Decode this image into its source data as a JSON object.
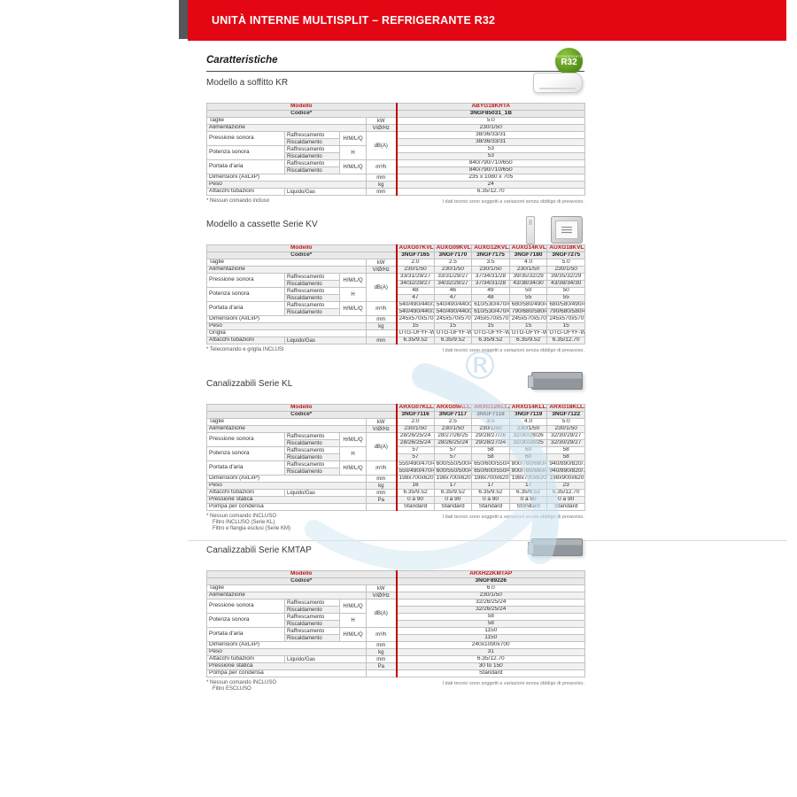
{
  "banner": {
    "title": "UNITÀ INTERNE MULTISPLIT – REFRIGERANTE R32"
  },
  "heading": "Caratteristiche",
  "badge": {
    "top_label": "REFRIGERANTE",
    "label": "R32",
    "color": "#5a9e1e"
  },
  "footnote_right": "I dati tecnici sono soggetti a variazioni senza obbligo di preavviso.",
  "labels": {
    "modello": "Modello",
    "codice": "Codice*",
    "taglie": "Taglie",
    "alimentazione": "Alimentazione",
    "pressione_sonora": "Pressione sonora",
    "potenza_sonora": "Potenza sonora",
    "portata_aria": "Portata d'aria",
    "raffrescamento": "Raffrescamento",
    "riscaldamento": "Riscaldamento",
    "hmlq": "H/M/L/Q",
    "h": "H",
    "dimensioni": "Dimensioni (AxLxP)",
    "peso": "Peso",
    "griglia": "Griglia",
    "attacchi": "Attacchi tubazioni",
    "liquido_gas": "Liquido/Gas",
    "pressione_statica": "Pressione statica",
    "pompa": "Pompa per condensa",
    "units": {
      "kw": "kW",
      "v": "V/Ø/Hz",
      "db": "dB(A)",
      "m3h": "m³/h",
      "mm": "mm",
      "kg": "kg",
      "pa": "Pa",
      "none": ""
    }
  },
  "sections": [
    {
      "id": "kr",
      "title": "Modello a soffitto KR",
      "models": [
        {
          "name": "ABYG18KRTA",
          "code": "3NGF85031_1B",
          "bold": true
        }
      ],
      "rows": {
        "taglie": [
          "5.0"
        ],
        "alimentazione": [
          "230/1/50"
        ],
        "pressione_raff": [
          "38/36/33/31"
        ],
        "pressione_risc": [
          "38/36/33/31"
        ],
        "potenza_raff": [
          "53"
        ],
        "potenza_risc": [
          "53"
        ],
        "portata_raff": [
          "840/790/710/650"
        ],
        "portata_risc": [
          "840/790/710/650"
        ],
        "dimensioni": [
          "235 x 1080 x 705"
        ],
        "peso": [
          "24"
        ],
        "attacchi": [
          "6.35/12.70"
        ]
      },
      "footnotes": [
        "* Nessun comando incluso"
      ]
    },
    {
      "id": "kv",
      "title": "Modello a cassette Serie KV",
      "models": [
        {
          "name": "AUXG07KVLA",
          "code": "3NGF7165",
          "bold": false
        },
        {
          "name": "AUXG09KVLA",
          "code": "3NGF7170",
          "bold": false
        },
        {
          "name": "AUXG12KVLA",
          "code": "3NGF7175",
          "bold": false
        },
        {
          "name": "AUXG14KVLA",
          "code": "3NGF7180",
          "bold": false
        },
        {
          "name": "AUXG18KVLA",
          "code": "3NGF7275",
          "bold": true
        }
      ],
      "rows": {
        "taglie": [
          "2.0",
          "2.5",
          "3.5",
          "4.0",
          "5.0"
        ],
        "alimentazione": [
          "230/1/50",
          "230/1/50",
          "230/1/50",
          "230/1/50",
          "230/1/50"
        ],
        "pressione_raff": [
          "33/31/29/27",
          "33/31/29/27",
          "37/34/31/28",
          "39/35/32/29",
          "39/35/32/29"
        ],
        "pressione_risc": [
          "34/32/29/27",
          "34/32/29/27",
          "37/34/31/28",
          "43/38/34/30",
          "43/38/34/30"
        ],
        "potenza_raff": [
          "48",
          "46",
          "49",
          "50",
          "50"
        ],
        "potenza_risc": [
          "47",
          "47",
          "48",
          "55",
          "55"
        ],
        "portata_raff": [
          "540/490/440/390",
          "540/490/440/390",
          "610/530/470/410",
          "680/580/490/410",
          "680/580/490/410"
        ],
        "portata_risc": [
          "540/490/440/390",
          "540/490/440/390",
          "610/530/470/410",
          "790/680/580/450",
          "790/680/580/450"
        ],
        "dimensioni": [
          "245x570x570",
          "245x570x570",
          "245x570x570",
          "245x570x570",
          "245x570x570"
        ],
        "peso": [
          "15",
          "15",
          "15",
          "15",
          "15"
        ],
        "griglia": [
          "UTG-UFYF-W",
          "UTG-UFYF-W",
          "UTG-UFYF-W",
          "UTG-UFYF-W",
          "UTG-UFYF-W"
        ],
        "attacchi": [
          "6.35/9.52",
          "6.35/9.52",
          "6.35/9.52",
          "6.35/9.52",
          "6.35/12.70"
        ]
      },
      "footnotes": [
        "* Telecomando e griglia INCLUSI"
      ]
    },
    {
      "id": "kl",
      "title": "Canalizzabili Serie KL",
      "models": [
        {
          "name": "ARXG07KLLAP",
          "code": "3NGF7116",
          "bold": false
        },
        {
          "name": "ARXG09KLLAP",
          "code": "3NGF7117",
          "bold": false
        },
        {
          "name": "ARXG12KLLAP",
          "code": "3NGF7118",
          "bold": false
        },
        {
          "name": "ARXG14KLLAP",
          "code": "3NGF7119",
          "bold": false
        },
        {
          "name": "ARXG18KLLAP",
          "code": "3NGF7122",
          "bold": true
        }
      ],
      "rows": {
        "taglie": [
          "2.0",
          "2.5",
          "3.5",
          "4.0",
          "5.0"
        ],
        "alimentazione": [
          "230/1/50",
          "230/1/50",
          "230/1/50",
          "230/1/50",
          "230/1/50"
        ],
        "pressione_raff": [
          "28/26/25/24",
          "28/27/26/25",
          "29/28/27/26",
          "32/30/28/26",
          "32/30/29/27"
        ],
        "pressione_risc": [
          "28/26/25/24",
          "28/26/25/24",
          "29/28/27/24",
          "32/30/28/25",
          "32/30/29/27"
        ],
        "potenza_raff": [
          "57",
          "57",
          "58",
          "60",
          "58"
        ],
        "potenza_risc": [
          "57",
          "57",
          "58",
          "60",
          "58"
        ],
        "portata_raff": [
          "550/490/470/440",
          "600/550/500/450",
          "650/600/550/400",
          "800/780/660/480",
          "940/890/820/750"
        ],
        "portata_risc": [
          "550/490/470/440",
          "600/550/500/450",
          "650/600/550/400",
          "800/780/660/480",
          "940/890/820/750"
        ],
        "dimensioni": [
          "198x700x620",
          "198x700x620",
          "198x700x620",
          "198x700x620",
          "198x900x620"
        ],
        "peso": [
          "16",
          "17",
          "17",
          "17",
          "23"
        ],
        "attacchi": [
          "6.35/9.52",
          "6.35/9.52",
          "6.35/9.52",
          "6.35/9.52",
          "6.35/12.70"
        ],
        "pressione_statica": [
          "0 a 90",
          "0 a 90",
          "0 a 90",
          "0 a 90",
          "0 a 90"
        ],
        "pompa": [
          "Standard",
          "Standard",
          "Standard",
          "Standard",
          "Standard"
        ]
      },
      "footnotes": [
        "* Nessun comando INCLUSO",
        "Filtro INCLUSO (Serie KL)",
        "Filtro e flangia esclusi (Serie KM)"
      ]
    },
    {
      "id": "kmtap",
      "title": "Canalizzabili Serie KMTAP",
      "models": [
        {
          "name": "ARXH22KMTAP",
          "code": "3NGF89226",
          "bold": true
        }
      ],
      "rows": {
        "taglie": [
          "6.0"
        ],
        "alimentazione": [
          "230/1/50"
        ],
        "pressione_raff": [
          "32/26/25/24"
        ],
        "pressione_risc": [
          "32/26/25/24"
        ],
        "potenza_raff": [
          "58"
        ],
        "potenza_risc": [
          "58"
        ],
        "portata_raff": [
          "1150"
        ],
        "portata_risc": [
          "1150"
        ],
        "dimensioni": [
          "240x1090x700"
        ],
        "peso": [
          "31"
        ],
        "attacchi": [
          "6.35/12.70"
        ],
        "pressione_statica": [
          "30 to 150"
        ],
        "pompa": [
          "Standard"
        ]
      },
      "footnotes": [
        "* Nessun comando INCLUSO",
        "Filtro ESCLUSO"
      ]
    }
  ]
}
